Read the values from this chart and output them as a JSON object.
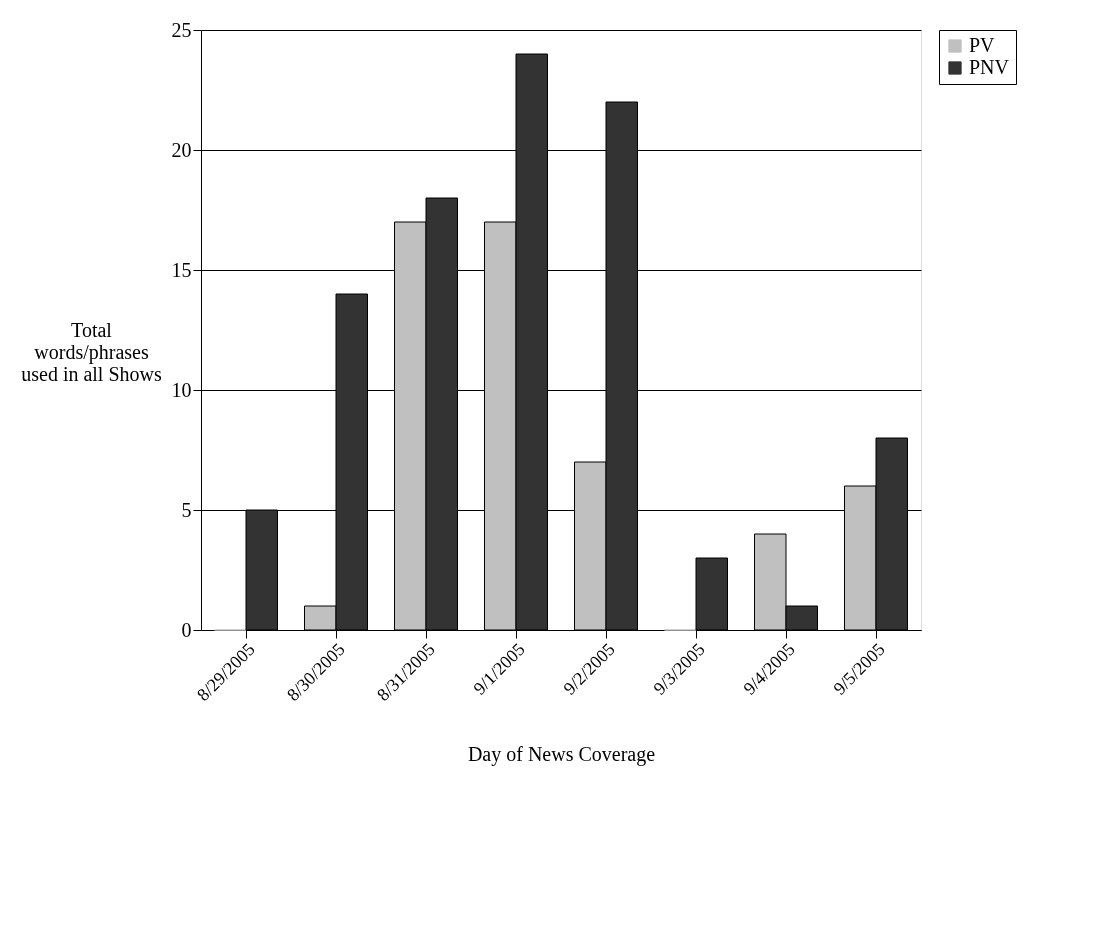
{
  "chart_data": {
    "type": "bar",
    "xlabel": "Day of News Coverage",
    "ylabel": "Total words/phrases used in all Shows",
    "categories": [
      "8/29/2005",
      "8/30/2005",
      "8/31/2005",
      "9/1/2005",
      "9/2/2005",
      "9/3/2005",
      "9/4/2005",
      "9/5/2005"
    ],
    "series": [
      {
        "name": "PV",
        "color": "#c0c0c0",
        "values": [
          0,
          1,
          17,
          17,
          7,
          0,
          4,
          6
        ]
      },
      {
        "name": "PNV",
        "color": "#333333",
        "values": [
          5,
          14,
          18,
          24,
          22,
          3,
          1,
          8
        ]
      }
    ],
    "ylim": [
      0,
      25
    ],
    "yticks": [
      0,
      5,
      10,
      15,
      20,
      25
    ],
    "grid": "y",
    "legend": "right"
  }
}
